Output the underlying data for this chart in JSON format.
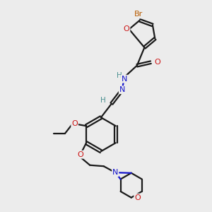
{
  "bg_color": "#ececec",
  "C_color": "#1a1a1a",
  "N_color": "#1414cc",
  "O_color": "#cc1414",
  "Br_color": "#b85c00",
  "H_color": "#4a9090",
  "bond_width": 1.6,
  "figsize": [
    3.0,
    3.0
  ],
  "dpi": 100,
  "xlim": [
    0,
    10
  ],
  "ylim": [
    0,
    10
  ]
}
